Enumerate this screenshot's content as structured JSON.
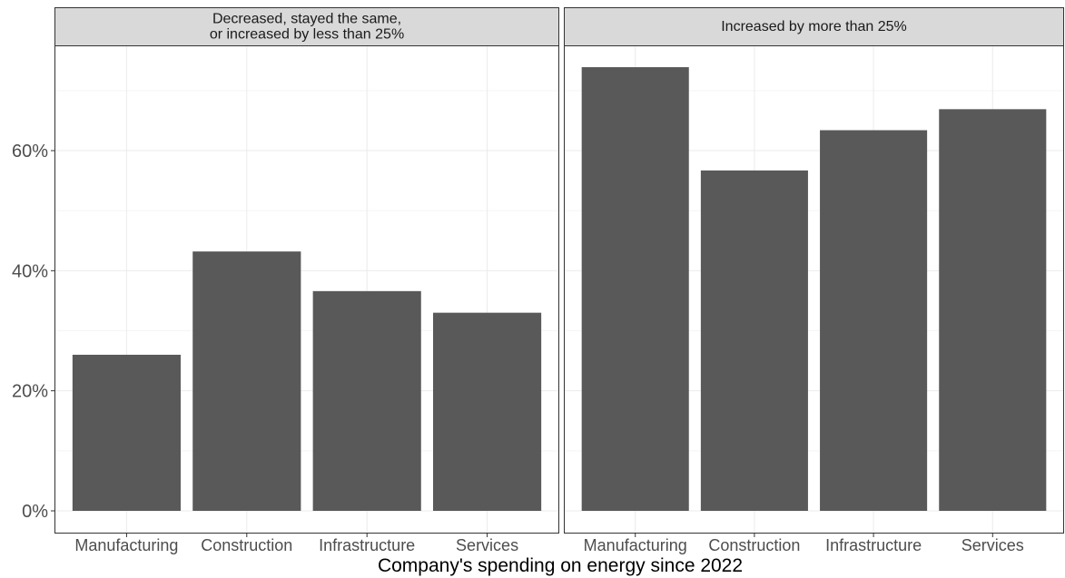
{
  "chart_data": {
    "type": "bar",
    "facets": [
      {
        "strip_label": [
          "Decreased, stayed the same,",
          "or increased by less than 25%"
        ],
        "categories": [
          "Manufacturing",
          "Construction",
          "Infrastructure",
          "Services"
        ],
        "values": [
          26,
          43.2,
          36.6,
          33
        ]
      },
      {
        "strip_label": [
          "Increased by more than 25%"
        ],
        "categories": [
          "Manufacturing",
          "Construction",
          "Infrastructure",
          "Services"
        ],
        "values": [
          73.9,
          56.7,
          63.4,
          66.9
        ]
      }
    ],
    "y_ticks": [
      "0%",
      "20%",
      "40%",
      "60%"
    ],
    "y_tick_values": [
      0,
      20,
      40,
      60
    ],
    "ylim": [
      0,
      77.5
    ],
    "xlabel": "Company's spending on energy since 2022",
    "ylabel": "",
    "grid": true,
    "legend": "none",
    "colors": {
      "bar": "#595959",
      "strip": "#d9d9d9",
      "panel_border": "#333333",
      "grid_major": "#ebebeb",
      "grid_minor": "#f5f5f5"
    }
  }
}
